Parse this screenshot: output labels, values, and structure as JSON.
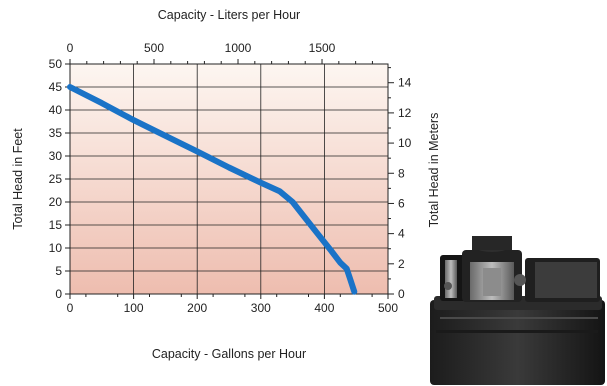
{
  "chart_data": {
    "type": "line",
    "x_bottom_label": "Capacity - Gallons per Hour",
    "x_top_label": "Capacity - Liters per Hour",
    "y_left_label": "Total Head in Feet",
    "y_right_label": "Total Head in Meters",
    "x_bottom": {
      "range": [
        0,
        500
      ],
      "ticks": [
        "0",
        "100",
        "200",
        "300",
        "400",
        "500"
      ]
    },
    "x_top": {
      "range": [
        0,
        1892.7
      ],
      "ticks": [
        {
          "v": 0,
          "t": "0"
        },
        {
          "v": 500,
          "t": "500"
        },
        {
          "v": 1000,
          "t": "1000"
        },
        {
          "v": 1500,
          "t": "1500"
        }
      ]
    },
    "y_left": {
      "range": [
        0,
        50
      ],
      "ticks": [
        "0",
        "5",
        "10",
        "15",
        "20",
        "25",
        "30",
        "35",
        "40",
        "45",
        "50"
      ]
    },
    "y_right": {
      "range": [
        0,
        15.24
      ],
      "ticks": [
        {
          "v": 0,
          "t": "0"
        },
        {
          "v": 2,
          "t": "2"
        },
        {
          "v": 4,
          "t": "4"
        },
        {
          "v": 6,
          "t": "6"
        },
        {
          "v": 8,
          "t": "8"
        },
        {
          "v": 10,
          "t": "10"
        },
        {
          "v": 12,
          "t": "12"
        },
        {
          "v": 14,
          "t": "14"
        }
      ]
    },
    "grid": true,
    "series": [
      {
        "color": "#1a73c7",
        "x": [
          0,
          50,
          100,
          150,
          200,
          250,
          300,
          330,
          350,
          370,
          390,
          410,
          425,
          435,
          440,
          447
        ],
        "y": [
          45,
          41.5,
          37.8,
          34.4,
          31,
          27.5,
          24.2,
          22.3,
          20,
          16.5,
          13,
          9.5,
          6.8,
          5.5,
          3.5,
          0.5
        ]
      }
    ]
  },
  "product_image": "condensate-pump-photo"
}
